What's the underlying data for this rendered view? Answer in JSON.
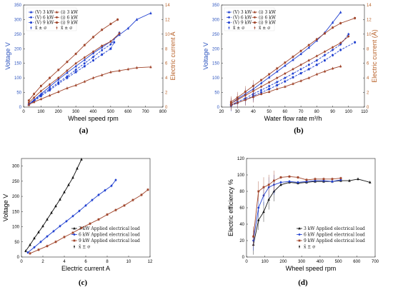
{
  "colors": {
    "voltage": "#2a52be",
    "current": "#b8622a",
    "black": "#111111",
    "blue": "#1f3fd0",
    "brown": "#a0442a"
  },
  "chart_data": [
    {
      "type": "line",
      "panel": "(a)",
      "xlabel": "Wheel speed rpm",
      "ylabel_left": "Voltage V",
      "ylabel_right": "Electric current A",
      "xlim": [
        0,
        800
      ],
      "ylim_left": [
        0,
        350
      ],
      "ylim_right": [
        0,
        14
      ],
      "xticks": [
        "0",
        "100",
        "200",
        "300",
        "400",
        "500",
        "600",
        "700",
        "800"
      ],
      "yticks_left": [
        "0",
        "50",
        "100",
        "150",
        "200",
        "250",
        "300",
        "350"
      ],
      "yticks_right": [
        "0",
        "2",
        "4",
        "6",
        "8",
        "10",
        "12",
        "14"
      ],
      "legend_position": "top-left",
      "legend": [
        "(V) 3 kW",
        "(V) 6 kW",
        "(V) 9 kW",
        "x̄ ± σ",
        "(i) 3 kW",
        "(i) 6 kW",
        "(i) 9 kW",
        "x̄ ± σ"
      ],
      "series": [
        {
          "name": "(V) 3 kW",
          "axis": "left",
          "x": [
            30,
            60,
            100,
            150,
            200,
            250,
            300,
            350,
            400,
            450,
            500,
            550,
            600,
            650,
            730
          ],
          "y": [
            10,
            25,
            45,
            70,
            95,
            118,
            140,
            162,
            185,
            205,
            225,
            248,
            270,
            300,
            322
          ]
        },
        {
          "name": "(V) 6 kW",
          "axis": "left",
          "x": [
            30,
            60,
            100,
            150,
            200,
            250,
            300,
            350,
            400,
            450,
            500,
            550
          ],
          "y": [
            10,
            22,
            42,
            62,
            85,
            105,
            128,
            150,
            172,
            195,
            215,
            255
          ]
        },
        {
          "name": "(V) 9 kW",
          "axis": "left",
          "x": [
            30,
            60,
            100,
            150,
            200,
            250,
            300,
            350,
            400,
            450,
            500,
            520
          ],
          "y": [
            8,
            20,
            38,
            58,
            80,
            100,
            120,
            140,
            160,
            180,
            200,
            222
          ]
        },
        {
          "name": "(i) 3 kW",
          "axis": "right",
          "x": [
            30,
            60,
            100,
            150,
            200,
            250,
            300,
            350,
            400,
            450,
            500,
            550,
            600,
            650,
            730
          ],
          "y": [
            0.3,
            0.7,
            1.1,
            1.6,
            2.1,
            2.6,
            3.0,
            3.5,
            4.0,
            4.4,
            4.8,
            5.0,
            5.2,
            5.4,
            5.5
          ]
        },
        {
          "name": "(i) 6 kW",
          "axis": "right",
          "x": [
            30,
            60,
            100,
            150,
            200,
            250,
            300,
            350,
            400,
            450,
            500,
            550
          ],
          "y": [
            0.6,
            1.3,
            2.2,
            3.1,
            4.0,
            5.0,
            6.0,
            6.8,
            7.6,
            8.4,
            9.0,
            10.1
          ]
        },
        {
          "name": "(i) 9 kW",
          "axis": "right",
          "x": [
            30,
            60,
            100,
            150,
            200,
            250,
            300,
            350,
            400,
            450,
            500,
            540
          ],
          "y": [
            0.9,
            1.8,
            2.9,
            4.0,
            5.1,
            6.2,
            7.3,
            8.5,
            9.6,
            10.6,
            11.4,
            12.0
          ]
        }
      ]
    },
    {
      "type": "line",
      "panel": "(b)",
      "xlabel": "Water flow rate m³/h",
      "ylabel_left": "Voltage V",
      "ylabel_right": "Electric current (A)",
      "xlim": [
        20,
        110
      ],
      "ylim_left": [
        0,
        350
      ],
      "ylim_right": [
        0,
        14
      ],
      "xticks": [
        "20",
        "30",
        "40",
        "50",
        "60",
        "70",
        "80",
        "90",
        "100",
        "110"
      ],
      "yticks_left": [
        "0",
        "50",
        "100",
        "150",
        "200",
        "250",
        "300",
        "350"
      ],
      "yticks_right": [
        "0",
        "2",
        "4",
        "6",
        "8",
        "10",
        "12",
        "14"
      ],
      "legend_position": "top-left",
      "legend": [
        "(V) 3 kW",
        "(V) 6 kW",
        "(V) 9 kW",
        "x̄ ± σ",
        "(i) 3 kW",
        "(i) 6 kW",
        "(i) 9 kW",
        "x̄ ± σ"
      ],
      "series": [
        {
          "name": "(V) 3 kW",
          "axis": "left",
          "x": [
            26,
            30,
            35,
            40,
            45,
            50,
            55,
            60,
            65,
            70,
            75,
            80,
            85,
            90,
            95
          ],
          "y": [
            12,
            28,
            45,
            62,
            82,
            102,
            122,
            142,
            162,
            182,
            204,
            228,
            255,
            290,
            325
          ]
        },
        {
          "name": "(V) 6 kW",
          "axis": "left",
          "x": [
            26,
            30,
            35,
            40,
            45,
            50,
            55,
            60,
            65,
            70,
            75,
            80,
            85,
            90,
            95,
            100
          ],
          "y": [
            8,
            18,
            30,
            45,
            58,
            72,
            86,
            100,
            115,
            130,
            145,
            160,
            178,
            196,
            215,
            250
          ]
        },
        {
          "name": "(V) 9 kW",
          "axis": "left",
          "x": [
            26,
            30,
            35,
            40,
            45,
            50,
            55,
            60,
            65,
            70,
            75,
            80,
            85,
            90,
            95,
            104
          ],
          "y": [
            5,
            14,
            25,
            38,
            50,
            62,
            75,
            88,
            102,
            116,
            130,
            145,
            160,
            178,
            196,
            222
          ]
        },
        {
          "name": "(i) 3 kW",
          "axis": "right",
          "x": [
            26,
            30,
            35,
            40,
            45,
            50,
            55,
            60,
            65,
            70,
            75,
            80,
            85,
            90,
            95
          ],
          "y": [
            0.3,
            0.6,
            1.0,
            1.4,
            1.8,
            2.1,
            2.5,
            2.8,
            3.2,
            3.6,
            4.0,
            4.5,
            4.9,
            5.3,
            5.6
          ]
        },
        {
          "name": "(i) 6 kW",
          "axis": "right",
          "x": [
            26,
            30,
            35,
            40,
            45,
            50,
            55,
            60,
            65,
            70,
            75,
            80,
            85,
            90,
            95,
            100
          ],
          "y": [
            0.5,
            1.0,
            1.6,
            2.2,
            2.8,
            3.4,
            4.0,
            4.6,
            5.2,
            5.8,
            6.4,
            7.0,
            7.6,
            8.2,
            8.8,
            9.7
          ]
        },
        {
          "name": "(i) 9 kW",
          "axis": "right",
          "x": [
            26,
            30,
            35,
            40,
            45,
            50,
            55,
            60,
            65,
            70,
            75,
            80,
            85,
            90,
            95,
            104
          ],
          "y": [
            0.7,
            1.3,
            2.1,
            2.9,
            3.7,
            4.5,
            5.3,
            6.1,
            6.9,
            7.7,
            8.5,
            9.3,
            10.1,
            10.9,
            11.5,
            12.2
          ]
        }
      ]
    },
    {
      "type": "line",
      "panel": "(c)",
      "xlabel": "Electric current A",
      "ylabel": "Voltage V",
      "xlim": [
        0,
        12
      ],
      "ylim": [
        0,
        325
      ],
      "xticks": [
        "0",
        "2",
        "4",
        "6",
        "8",
        "10",
        "12"
      ],
      "yticks": [
        "0",
        "50",
        "100",
        "150",
        "200",
        "250",
        "300"
      ],
      "legend_position": "bottom-right",
      "legend": [
        "3 kW Applied electrical load",
        "6 kW Applied electrical load",
        "9 kW Applied electrical load",
        "x̄ ± σ"
      ],
      "series": [
        {
          "name": "3 kW Applied electrical load",
          "x": [
            0.4,
            0.8,
            1.2,
            1.6,
            2.0,
            2.4,
            2.8,
            3.2,
            3.6,
            4.0,
            4.4,
            4.8,
            5.2,
            5.6
          ],
          "y": [
            20,
            40,
            62,
            82,
            102,
            124,
            146,
            168,
            190,
            214,
            238,
            262,
            292,
            322
          ]
        },
        {
          "name": "6 kW Applied electrical load",
          "x": [
            0.6,
            1.2,
            1.8,
            2.4,
            3.0,
            3.6,
            4.2,
            4.8,
            5.4,
            6.0,
            6.6,
            7.2,
            7.8,
            8.4,
            8.8
          ],
          "y": [
            15,
            32,
            50,
            68,
            85,
            102,
            118,
            135,
            152,
            170,
            188,
            205,
            220,
            235,
            254
          ]
        },
        {
          "name": "9 kW Applied electrical load",
          "x": [
            0.8,
            1.6,
            2.4,
            3.2,
            4.0,
            4.8,
            5.6,
            6.4,
            7.2,
            8.0,
            8.8,
            9.6,
            10.4,
            11.2,
            11.8
          ],
          "y": [
            12,
            24,
            36,
            50,
            66,
            80,
            96,
            110,
            124,
            140,
            155,
            170,
            188,
            205,
            222
          ]
        }
      ]
    },
    {
      "type": "line",
      "panel": "(d)",
      "xlabel": "Wheel speed rpm",
      "ylabel": "Electric efficiency %",
      "xlim": [
        0,
        750
      ],
      "ylim": [
        0,
        120
      ],
      "xticks": [
        "0",
        "100",
        "200",
        "300",
        "400",
        "500",
        "600",
        "700"
      ],
      "yticks": [
        "0",
        "20",
        "40",
        "60",
        "80",
        "100",
        "120"
      ],
      "legend_position": "bottom-right",
      "legend": [
        "3 kW Applied electrical load",
        "6 kW Applied electrical load",
        "9 kW Applied electrical load",
        "x̄ ± σ"
      ],
      "series": [
        {
          "name": "3 kW Applied electrical load",
          "x": [
            40,
            70,
            100,
            130,
            160,
            200,
            250,
            300,
            350,
            400,
            450,
            500,
            550,
            600,
            650,
            720
          ],
          "y": [
            15,
            45,
            55,
            70,
            80,
            88,
            91,
            90,
            91,
            92,
            92,
            92,
            93,
            93,
            95,
            91
          ]
        },
        {
          "name": "6 kW Applied electrical load",
          "x": [
            40,
            70,
            100,
            130,
            160,
            200,
            250,
            300,
            350,
            400,
            450,
            500,
            550
          ],
          "y": [
            20,
            60,
            75,
            85,
            88,
            91,
            92,
            91,
            92,
            93,
            93,
            92,
            94
          ]
        },
        {
          "name": "9 kW Applied electrical load",
          "x": [
            40,
            70,
            100,
            130,
            160,
            200,
            250,
            300,
            350,
            400,
            450,
            500,
            550
          ],
          "y": [
            25,
            80,
            85,
            88,
            93,
            97,
            98,
            97,
            94,
            95,
            95,
            95,
            96
          ]
        }
      ]
    }
  ]
}
